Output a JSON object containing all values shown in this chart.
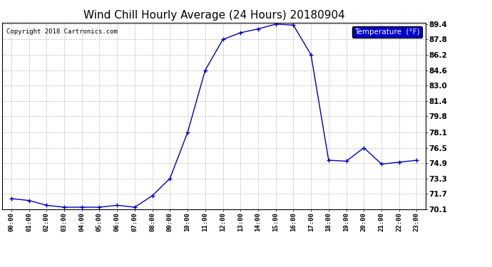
{
  "title": "Wind Chill Hourly Average (24 Hours) 20180904",
  "copyright": "Copyright 2018 Cartronics.com",
  "legend_label": "Temperature  (°F)",
  "x_labels": [
    "00:00",
    "01:00",
    "02:00",
    "03:00",
    "04:00",
    "05:00",
    "06:00",
    "07:00",
    "08:00",
    "09:00",
    "10:00",
    "11:00",
    "12:00",
    "13:00",
    "14:00",
    "15:00",
    "16:00",
    "17:00",
    "18:00",
    "19:00",
    "20:00",
    "21:00",
    "22:00",
    "23:00"
  ],
  "y_values": [
    71.2,
    71.0,
    70.5,
    70.3,
    70.3,
    70.3,
    70.5,
    70.3,
    71.5,
    73.3,
    78.1,
    84.6,
    87.8,
    88.5,
    88.9,
    89.4,
    89.3,
    86.2,
    75.2,
    75.1,
    76.5,
    74.8,
    75.0,
    75.2
  ],
  "ylim_min": 70.1,
  "ylim_max": 89.4,
  "y_ticks": [
    70.1,
    71.7,
    73.3,
    74.9,
    76.5,
    78.1,
    79.8,
    81.4,
    83.0,
    84.6,
    86.2,
    87.8,
    89.4
  ],
  "line_color": "#0000bb",
  "marker": "+",
  "bg_color": "#ffffff",
  "plot_bg_color": "#ffffff",
  "grid_color": "#bbbbbb",
  "title_fontsize": 11,
  "legend_bg": "#0000cc",
  "legend_text_color": "#ffffff"
}
